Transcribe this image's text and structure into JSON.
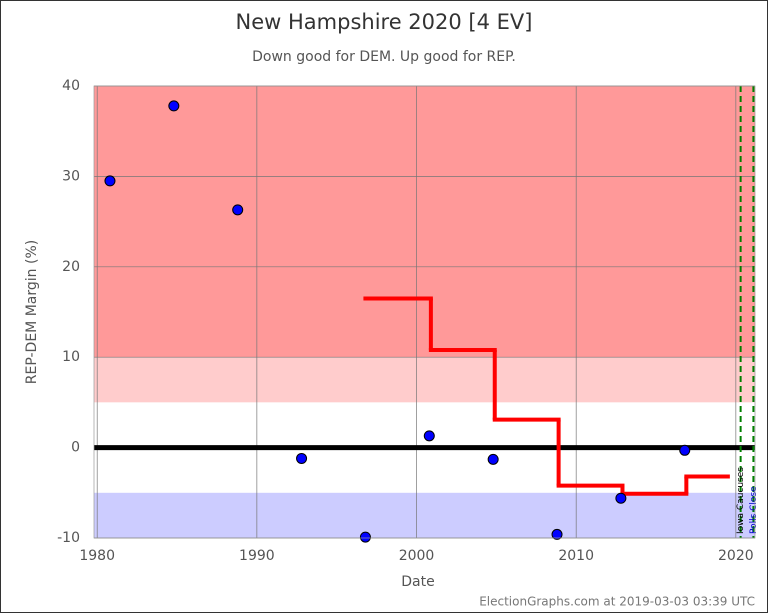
{
  "chart_data": {
    "type": "scatter",
    "title": "New Hampshire 2020 [4 EV]",
    "subtitle": "Down good for DEM. Up good for REP.",
    "y_label": "REP-DEM Margin (%)",
    "x_label": "Date",
    "footer": "ElectionGraphs.com at 2019-03-03 03:39 UTC",
    "xlim": [
      1979.8,
      2021.2
    ],
    "ylim": [
      -10,
      40
    ],
    "xticks": [
      1980,
      1990,
      2000,
      2010,
      2020
    ],
    "yticks": [
      -10,
      0,
      10,
      20,
      30,
      40
    ],
    "grid": true,
    "bands": [
      {
        "from": 10,
        "to": 40,
        "color": "#ff9999"
      },
      {
        "from": 5,
        "to": 10,
        "color": "#ffcccc"
      },
      {
        "from": -5,
        "to": 5,
        "color": "#ffffff"
      },
      {
        "from": -10,
        "to": -5,
        "color": "#ccccff"
      }
    ],
    "zero_line": 0,
    "points": {
      "color": "#0000ff",
      "x": [
        1980.8,
        1984.8,
        1988.8,
        1992.8,
        1996.8,
        2000.8,
        2004.8,
        2008.8,
        2012.8,
        2016.8
      ],
      "values": [
        29.5,
        37.8,
        26.3,
        -1.2,
        -9.9,
        1.3,
        -1.3,
        -9.6,
        -5.6,
        -0.3
      ]
    },
    "average": {
      "color": "#ff0000",
      "x": [
        1996.8,
        2000.9,
        2004.9,
        2008.9,
        2012.9,
        2016.9
      ],
      "values": [
        16.5,
        10.8,
        3.1,
        -4.2,
        -5.1,
        -3.2
      ],
      "x_end": 2019.5
    },
    "markers": [
      {
        "x": 2020.3,
        "label": "Iowa Caucuses",
        "color": "#000000"
      },
      {
        "x": 2021.1,
        "label": "Polls Close",
        "color": "#0000cc"
      }
    ]
  }
}
